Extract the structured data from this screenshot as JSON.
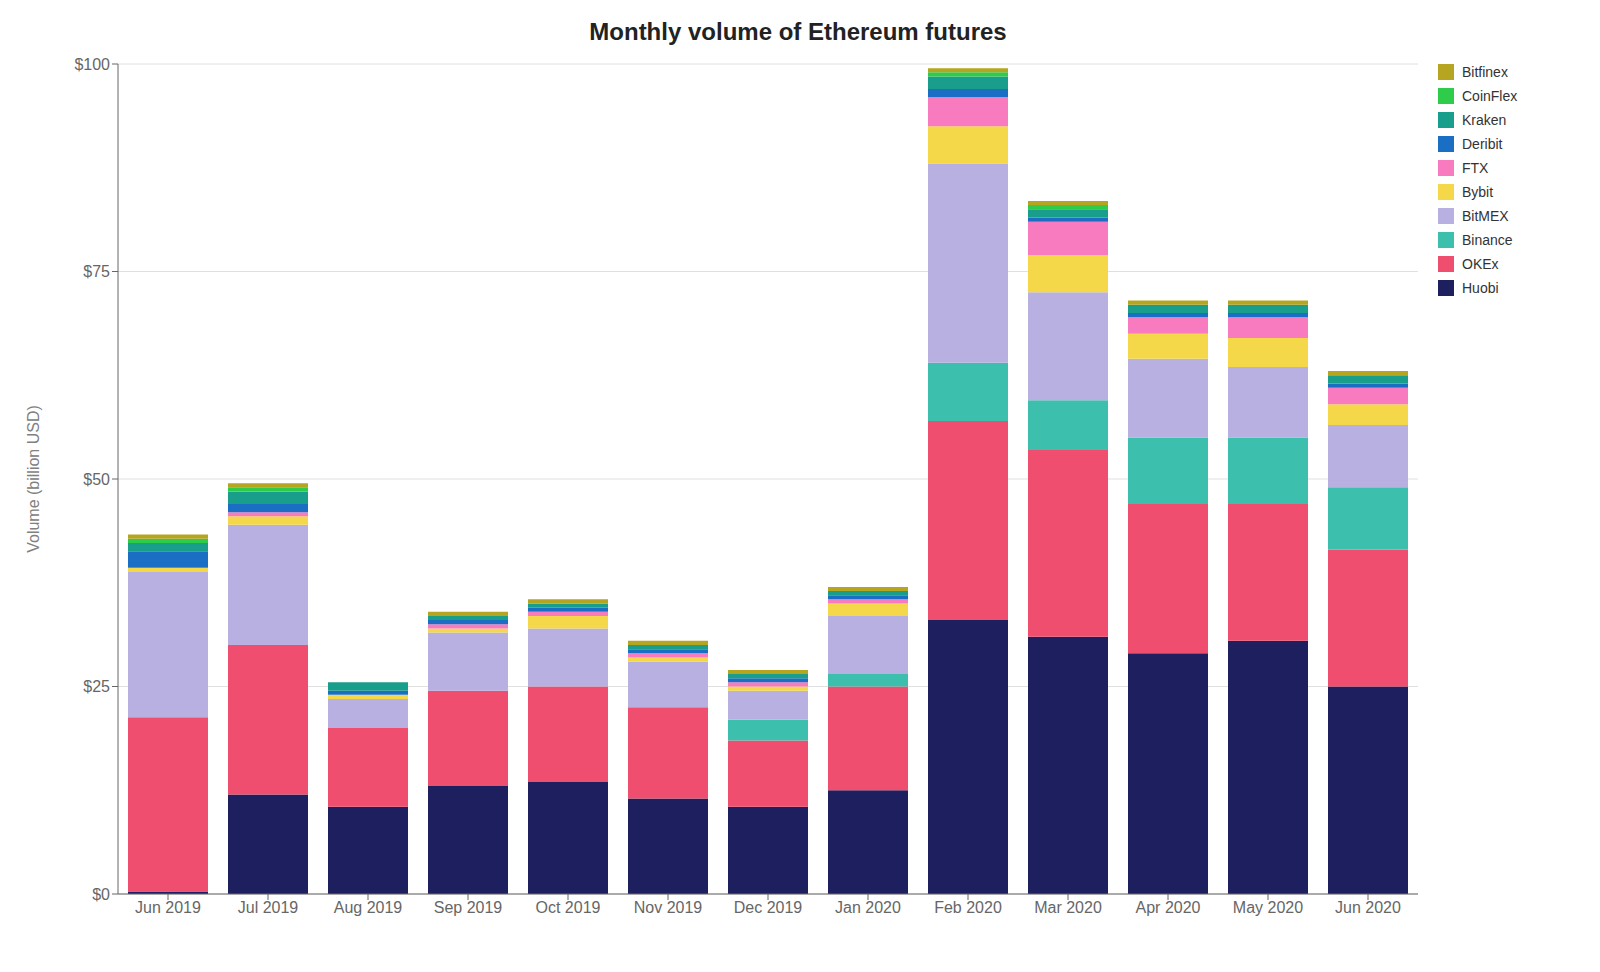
{
  "chart_data": {
    "type": "bar",
    "title": "Monthly volume of Ethereum futures",
    "ylabel": "Volume (billion USD)",
    "categories": [
      "Jun 2019",
      "Jul 2019",
      "Aug 2019",
      "Sep 2019",
      "Oct 2019",
      "Nov 2019",
      "Dec 2019",
      "Jan 2020",
      "Feb 2020",
      "Mar 2020",
      "Apr 2020",
      "May 2020",
      "Jun 2020"
    ],
    "series": [
      {
        "name": "Huobi",
        "color": "#1e1f5e",
        "values": [
          0.3,
          12.0,
          10.5,
          13.0,
          13.5,
          11.5,
          10.5,
          12.5,
          33.0,
          31.0,
          29.0,
          30.5,
          25.0
        ]
      },
      {
        "name": "OKEx",
        "color": "#f04e6e",
        "values": [
          21.0,
          18.0,
          9.5,
          11.5,
          11.5,
          11.0,
          8.0,
          12.5,
          24.0,
          22.5,
          18.0,
          16.5,
          16.5
        ]
      },
      {
        "name": "Binance",
        "color": "#3dbfad",
        "values": [
          0.0,
          0.0,
          0.0,
          0.0,
          0.0,
          0.0,
          2.5,
          1.5,
          7.0,
          6.0,
          8.0,
          8.0,
          7.5
        ]
      },
      {
        "name": "BitMEX",
        "color": "#b8b0e0",
        "values": [
          17.5,
          14.5,
          3.5,
          7.0,
          7.0,
          5.5,
          3.5,
          7.0,
          24.0,
          13.0,
          9.5,
          8.5,
          7.5
        ]
      },
      {
        "name": "Bybit",
        "color": "#f5d84a",
        "values": [
          0.5,
          1.0,
          0.5,
          0.5,
          1.5,
          0.5,
          0.5,
          1.5,
          4.5,
          4.5,
          3.0,
          3.5,
          2.5
        ]
      },
      {
        "name": "FTX",
        "color": "#f87abf",
        "values": [
          0.0,
          0.5,
          0.0,
          0.5,
          0.5,
          0.5,
          0.5,
          0.5,
          3.5,
          4.0,
          2.0,
          2.5,
          2.0
        ]
      },
      {
        "name": "Deribit",
        "color": "#1a6fc4",
        "values": [
          2.0,
          1.0,
          0.5,
          0.5,
          0.5,
          0.5,
          0.5,
          0.5,
          1.0,
          0.5,
          0.5,
          0.5,
          0.5
        ]
      },
      {
        "name": "Kraken",
        "color": "#1a9e8c",
        "values": [
          1.0,
          1.5,
          1.0,
          0.5,
          0.5,
          0.5,
          0.5,
          0.5,
          1.5,
          1.0,
          1.0,
          1.0,
          1.0
        ]
      },
      {
        "name": "CoinFlex",
        "color": "#2ecc4a",
        "values": [
          0.5,
          0.5,
          0.0,
          0.0,
          0.0,
          0.0,
          0.0,
          0.0,
          0.5,
          0.5,
          0.0,
          0.0,
          0.0
        ]
      },
      {
        "name": "Bitfinex",
        "color": "#b5a520",
        "values": [
          0.5,
          0.5,
          0.0,
          0.5,
          0.5,
          0.5,
          0.5,
          0.5,
          0.5,
          0.5,
          0.5,
          0.5,
          0.5
        ]
      }
    ],
    "stacked": true,
    "ylim": [
      0,
      100
    ],
    "yticks": [
      {
        "value": 0,
        "label": "$0"
      },
      {
        "value": 25,
        "label": "$25"
      },
      {
        "value": 50,
        "label": "$50"
      },
      {
        "value": 75,
        "label": "$75"
      },
      {
        "value": 100,
        "label": "$100"
      }
    ],
    "grid": true,
    "legend": "upper right"
  }
}
